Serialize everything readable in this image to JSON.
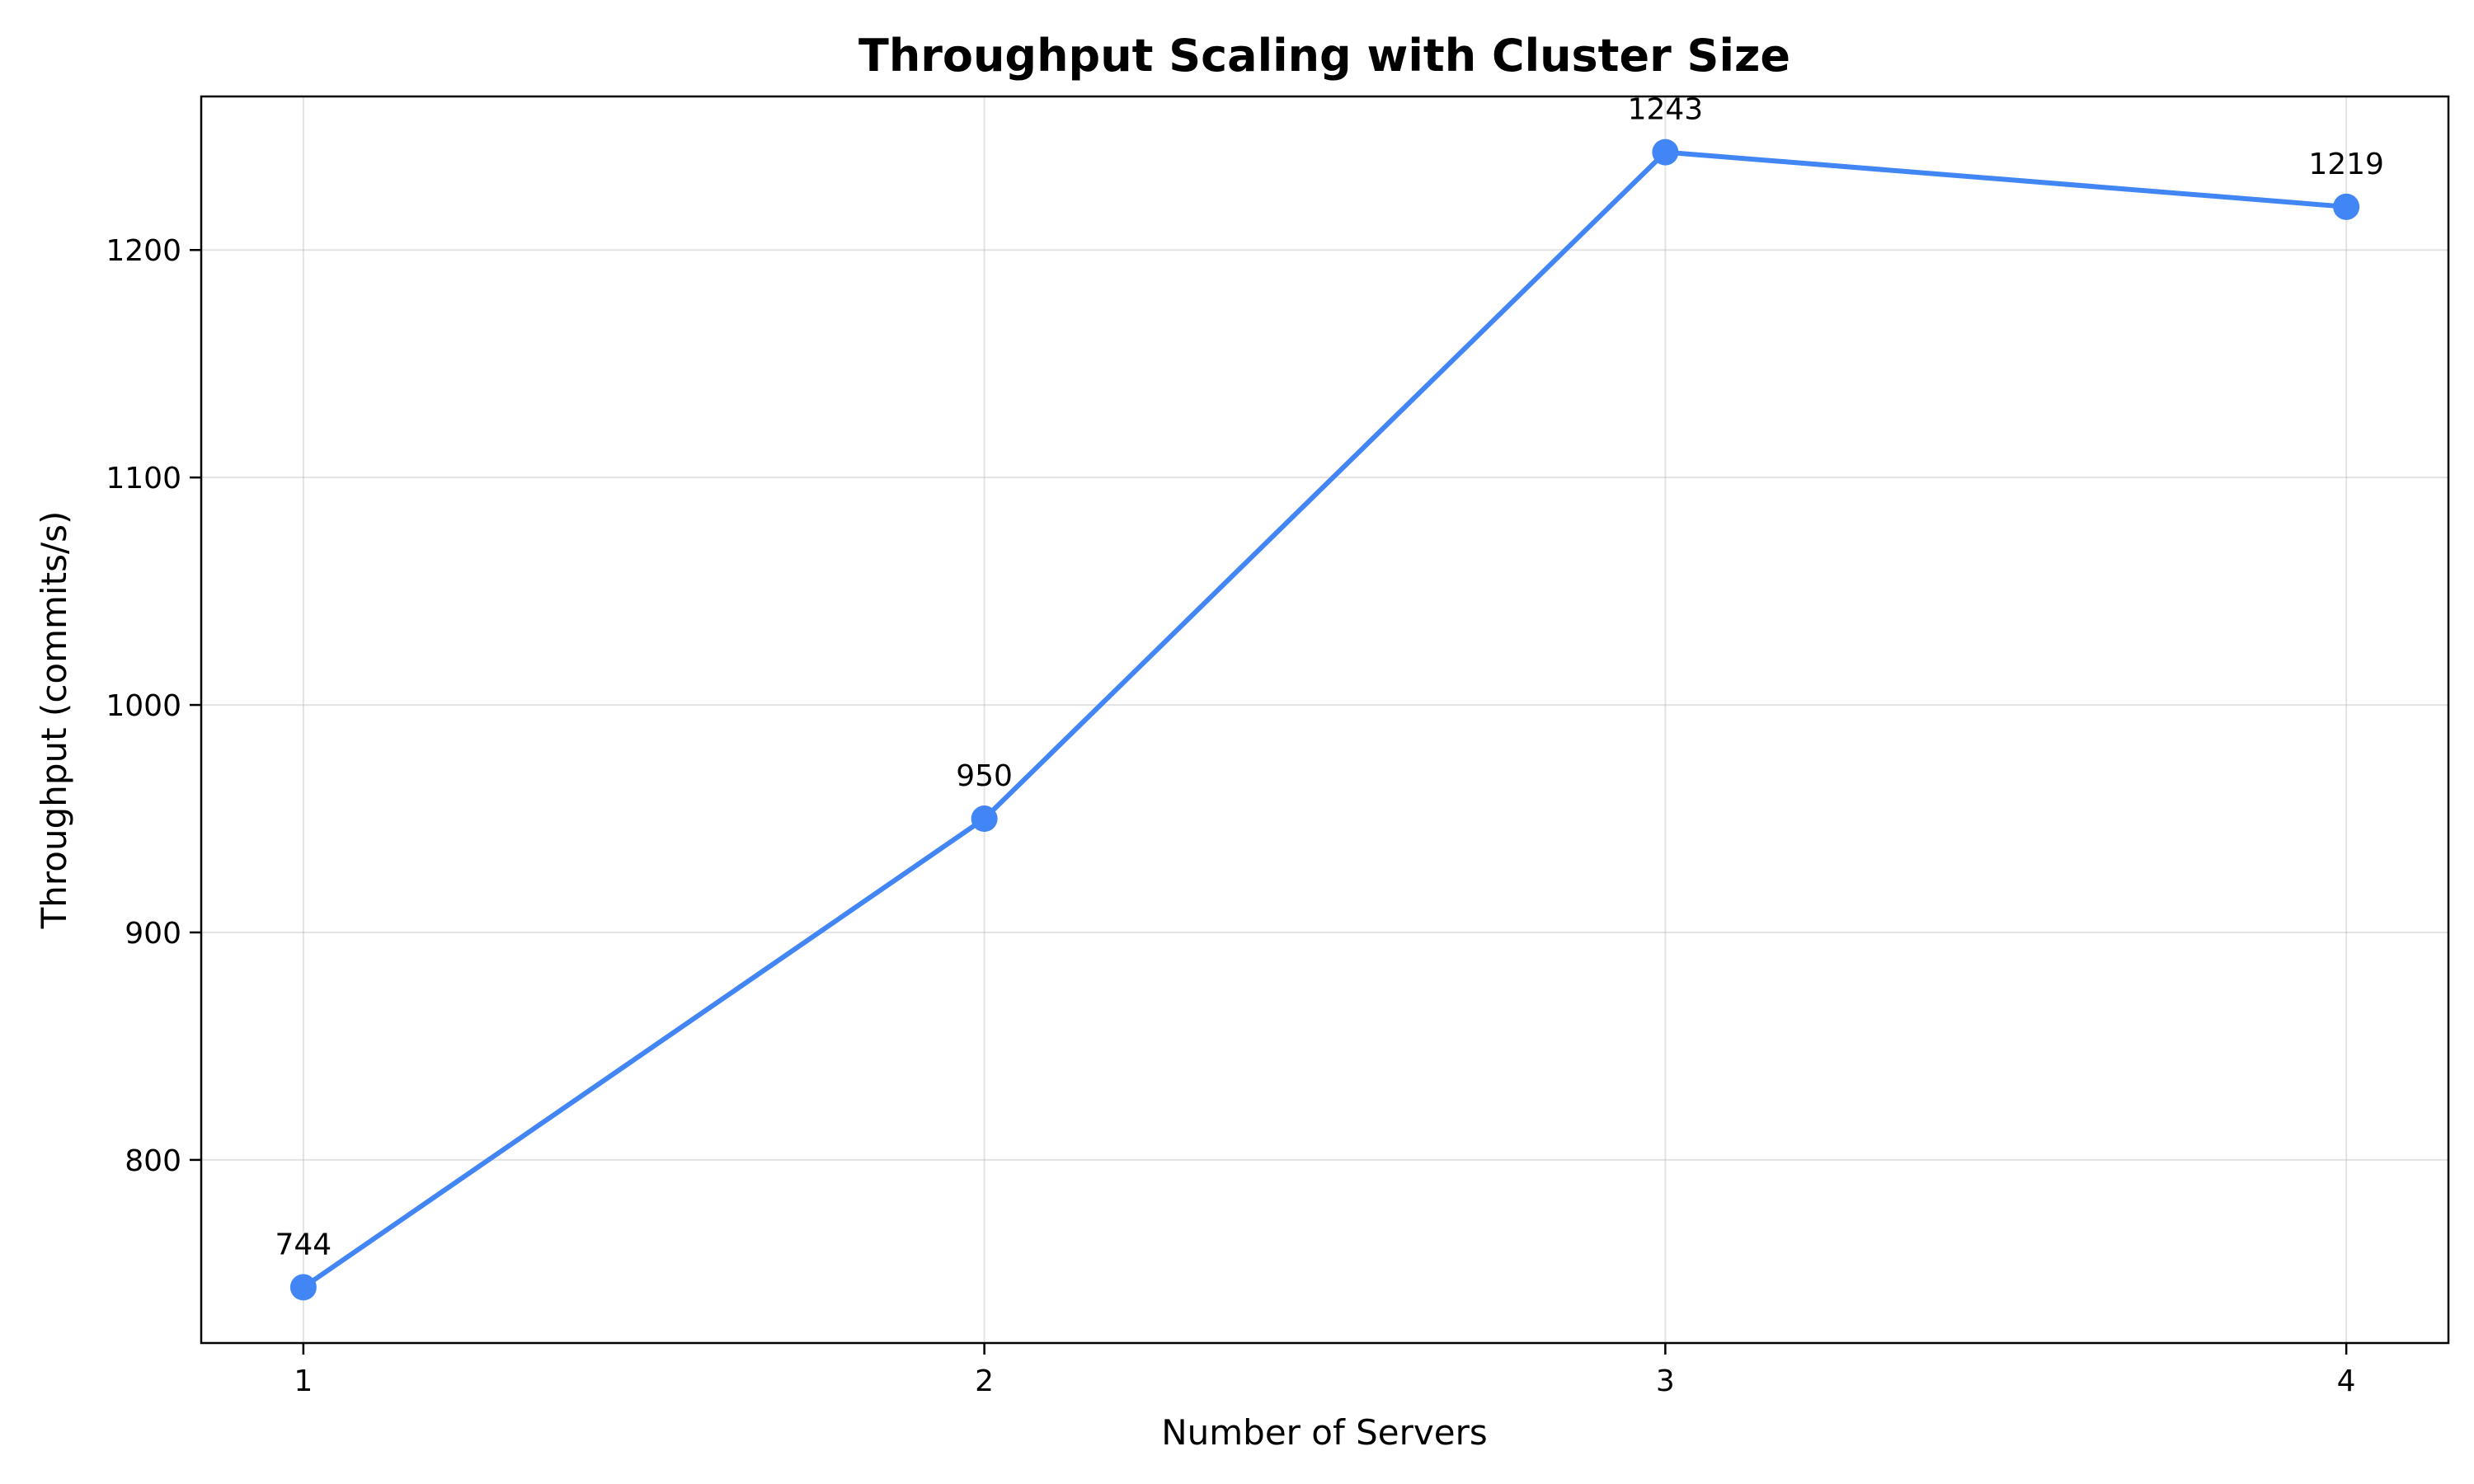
{
  "chart_data": {
    "type": "line",
    "title": "Throughput Scaling with Cluster Size",
    "xlabel": "Number of Servers",
    "ylabel": "Throughput (commits/s)",
    "x": [
      1,
      2,
      3,
      4
    ],
    "x_ticks": [
      "1",
      "2",
      "3",
      "4"
    ],
    "y_ticks": [
      800,
      900,
      1000,
      1100,
      1200
    ],
    "xlim": [
      0.85,
      4.15
    ],
    "ylim": [
      719.5,
      1267.5
    ],
    "series": [
      {
        "values": [
          744,
          950,
          1243,
          1219
        ],
        "labels": [
          "744",
          "950",
          "1243",
          "1219"
        ],
        "color": "#4285f4"
      }
    ],
    "grid": true,
    "legend": "none"
  }
}
